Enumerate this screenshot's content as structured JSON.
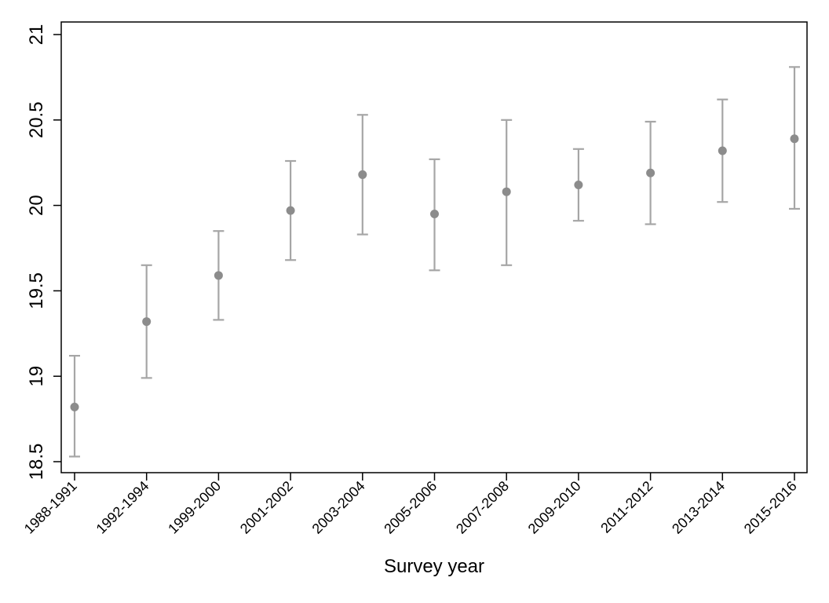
{
  "chart_data": {
    "type": "scatter",
    "title": "",
    "xlabel": "Survey year",
    "ylabel": "",
    "categories": [
      "1988-1991",
      "1992-1994",
      "1999-2000",
      "2001-2002",
      "2003-2004",
      "2005-2006",
      "2007-2008",
      "2009-2010",
      "2011-2012",
      "2013-2014",
      "2015-2016"
    ],
    "series": [
      {
        "values": [
          18.82,
          19.32,
          19.59,
          19.97,
          20.18,
          19.95,
          20.08,
          20.12,
          20.19,
          20.32,
          20.39
        ],
        "ci_lower": [
          18.53,
          18.99,
          19.33,
          19.68,
          19.83,
          19.62,
          19.65,
          19.91,
          19.89,
          20.02,
          19.98
        ],
        "ci_upper": [
          19.12,
          19.65,
          19.85,
          20.26,
          20.53,
          20.27,
          20.5,
          20.33,
          20.49,
          20.62,
          20.81
        ]
      }
    ],
    "ylim": [
      18.5,
      21
    ],
    "yticks": [
      "18.5",
      "19",
      "19.5",
      "20",
      "20.5",
      "21"
    ],
    "grid": false,
    "legend": "none",
    "colors": {
      "marker": "#8c8c8c",
      "errorbar": "#a6a6a6",
      "axis": "#000000"
    }
  }
}
